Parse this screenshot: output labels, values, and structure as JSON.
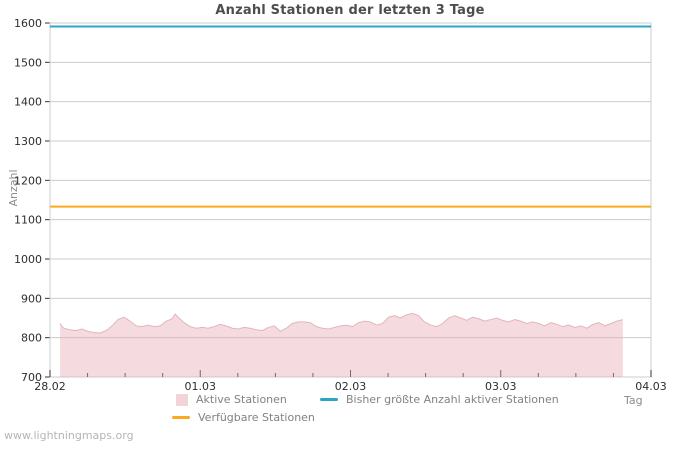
{
  "watermark": "www.lightningmaps.org",
  "chart_data": {
    "type": "area",
    "title": "Anzahl Stationen der letzten 3 Tage",
    "xlabel": "Tag",
    "ylabel": "Anzahl",
    "ylim": [
      700,
      1600
    ],
    "yticks": [
      700,
      800,
      900,
      1000,
      1100,
      1200,
      1300,
      1400,
      1500,
      1600
    ],
    "xticks": [
      {
        "t": 0,
        "label": "28.02"
      },
      {
        "t": 1,
        "label": "01.03"
      },
      {
        "t": 2,
        "label": "02.03"
      },
      {
        "t": 3,
        "label": "03.03"
      },
      {
        "t": 4,
        "label": "04.03"
      }
    ],
    "x_minor_step": 0.25,
    "grid": true,
    "legend_position": "bottom",
    "colors": {
      "grid": "#cccccc",
      "tick": "#333333",
      "axis_text": "#2e2e2e",
      "label_text": "#8c8c8c",
      "title_text": "#4d4d4d",
      "legend_text": "#828282",
      "watermark_text": "#b5b5b5",
      "area_fill": "rgba(230,170,180,0.42)",
      "area_edge": "#e0b6bd",
      "legend_area_swatch": "#f2d3d8",
      "max_line": "#2ba7c6",
      "available_line": "#fbaa1d"
    },
    "series": [
      {
        "name": "Aktive Stationen",
        "kind": "area",
        "points": [
          [
            0.067,
            836
          ],
          [
            0.08,
            828
          ],
          [
            0.093,
            824
          ],
          [
            0.133,
            820
          ],
          [
            0.173,
            818
          ],
          [
            0.213,
            822
          ],
          [
            0.253,
            816
          ],
          [
            0.293,
            813
          ],
          [
            0.333,
            812
          ],
          [
            0.373,
            818
          ],
          [
            0.413,
            830
          ],
          [
            0.453,
            846
          ],
          [
            0.493,
            852
          ],
          [
            0.533,
            842
          ],
          [
            0.573,
            830
          ],
          [
            0.613,
            828
          ],
          [
            0.653,
            832
          ],
          [
            0.693,
            828
          ],
          [
            0.733,
            830
          ],
          [
            0.773,
            842
          ],
          [
            0.813,
            848
          ],
          [
            0.833,
            860
          ],
          [
            0.853,
            852
          ],
          [
            0.893,
            838
          ],
          [
            0.933,
            828
          ],
          [
            0.973,
            824
          ],
          [
            1.013,
            826
          ],
          [
            1.053,
            824
          ],
          [
            1.093,
            828
          ],
          [
            1.133,
            834
          ],
          [
            1.173,
            830
          ],
          [
            1.213,
            824
          ],
          [
            1.253,
            822
          ],
          [
            1.293,
            826
          ],
          [
            1.333,
            824
          ],
          [
            1.373,
            820
          ],
          [
            1.413,
            818
          ],
          [
            1.453,
            826
          ],
          [
            1.493,
            830
          ],
          [
            1.533,
            816
          ],
          [
            1.573,
            824
          ],
          [
            1.613,
            836
          ],
          [
            1.653,
            840
          ],
          [
            1.693,
            840
          ],
          [
            1.733,
            838
          ],
          [
            1.773,
            828
          ],
          [
            1.813,
            824
          ],
          [
            1.853,
            822
          ],
          [
            1.893,
            826
          ],
          [
            1.933,
            830
          ],
          [
            1.973,
            832
          ],
          [
            2.013,
            828
          ],
          [
            2.053,
            838
          ],
          [
            2.093,
            842
          ],
          [
            2.133,
            840
          ],
          [
            2.173,
            832
          ],
          [
            2.213,
            836
          ],
          [
            2.253,
            852
          ],
          [
            2.293,
            856
          ],
          [
            2.333,
            850
          ],
          [
            2.373,
            858
          ],
          [
            2.413,
            862
          ],
          [
            2.453,
            856
          ],
          [
            2.493,
            840
          ],
          [
            2.533,
            832
          ],
          [
            2.573,
            828
          ],
          [
            2.613,
            836
          ],
          [
            2.653,
            850
          ],
          [
            2.693,
            856
          ],
          [
            2.733,
            850
          ],
          [
            2.773,
            844
          ],
          [
            2.813,
            852
          ],
          [
            2.853,
            848
          ],
          [
            2.893,
            842
          ],
          [
            2.933,
            846
          ],
          [
            2.973,
            850
          ],
          [
            3.013,
            844
          ],
          [
            3.053,
            840
          ],
          [
            3.093,
            846
          ],
          [
            3.133,
            842
          ],
          [
            3.173,
            836
          ],
          [
            3.213,
            840
          ],
          [
            3.253,
            836
          ],
          [
            3.293,
            830
          ],
          [
            3.333,
            838
          ],
          [
            3.373,
            834
          ],
          [
            3.413,
            828
          ],
          [
            3.453,
            832
          ],
          [
            3.493,
            826
          ],
          [
            3.533,
            830
          ],
          [
            3.573,
            824
          ],
          [
            3.613,
            834
          ],
          [
            3.653,
            838
          ],
          [
            3.693,
            830
          ],
          [
            3.733,
            836
          ],
          [
            3.773,
            842
          ],
          [
            3.813,
            846
          ]
        ]
      },
      {
        "name": "Bisher größte Anzahl aktiver Stationen",
        "kind": "hline",
        "value": 1591
      },
      {
        "name": "Verfügbare Stationen",
        "kind": "hline",
        "value": 1133
      }
    ]
  }
}
